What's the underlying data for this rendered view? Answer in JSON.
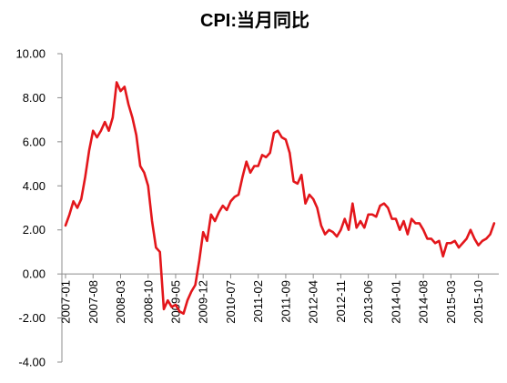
{
  "chart_data": {
    "type": "line",
    "title": "CPI:当月同比",
    "xlabel": "",
    "ylabel": "",
    "ylim": [
      -4,
      10
    ],
    "yticks": [
      "10.00",
      "8.00",
      "6.00",
      "4.00",
      "2.00",
      "0.00",
      "-2.00",
      "-4.00"
    ],
    "xtick_labels": [
      "2007-01",
      "2007-08",
      "2008-03",
      "2008-10",
      "2009-05",
      "2009-12",
      "2010-07",
      "2011-02",
      "2011-09",
      "2012-04",
      "2012-11",
      "2013-06",
      "2014-01",
      "2014-08",
      "2015-03",
      "2015-10"
    ],
    "x": [
      "2007-01",
      "2007-02",
      "2007-03",
      "2007-04",
      "2007-05",
      "2007-06",
      "2007-07",
      "2007-08",
      "2007-09",
      "2007-10",
      "2007-11",
      "2007-12",
      "2008-01",
      "2008-02",
      "2008-03",
      "2008-04",
      "2008-05",
      "2008-06",
      "2008-07",
      "2008-08",
      "2008-09",
      "2008-10",
      "2008-11",
      "2008-12",
      "2009-01",
      "2009-02",
      "2009-03",
      "2009-04",
      "2009-05",
      "2009-06",
      "2009-07",
      "2009-08",
      "2009-09",
      "2009-10",
      "2009-11",
      "2009-12",
      "2010-01",
      "2010-02",
      "2010-03",
      "2010-04",
      "2010-05",
      "2010-06",
      "2010-07",
      "2010-08",
      "2010-09",
      "2010-10",
      "2010-11",
      "2010-12",
      "2011-01",
      "2011-02",
      "2011-03",
      "2011-04",
      "2011-05",
      "2011-06",
      "2011-07",
      "2011-08",
      "2011-09",
      "2011-10",
      "2011-11",
      "2011-12",
      "2012-01",
      "2012-02",
      "2012-03",
      "2012-04",
      "2012-05",
      "2012-06",
      "2012-07",
      "2012-08",
      "2012-09",
      "2012-10",
      "2012-11",
      "2012-12",
      "2013-01",
      "2013-02",
      "2013-03",
      "2013-04",
      "2013-05",
      "2013-06",
      "2013-07",
      "2013-08",
      "2013-09",
      "2013-10",
      "2013-11",
      "2013-12",
      "2014-01",
      "2014-02",
      "2014-03",
      "2014-04",
      "2014-05",
      "2014-06",
      "2014-07",
      "2014-08",
      "2014-09",
      "2014-10",
      "2014-11",
      "2014-12",
      "2015-01",
      "2015-02",
      "2015-03",
      "2015-04",
      "2015-05",
      "2015-06",
      "2015-07",
      "2015-08",
      "2015-09",
      "2015-10",
      "2015-11",
      "2015-12",
      "2016-01",
      "2016-02"
    ],
    "series": [
      {
        "color": "#E3161B",
        "values": [
          2.2,
          2.7,
          3.3,
          3.0,
          3.4,
          4.4,
          5.6,
          6.5,
          6.2,
          6.5,
          6.9,
          6.5,
          7.1,
          8.7,
          8.3,
          8.5,
          7.7,
          7.1,
          6.3,
          4.9,
          4.6,
          4.0,
          2.4,
          1.2,
          1.0,
          -1.6,
          -1.2,
          -1.5,
          -1.4,
          -1.7,
          -1.8,
          -1.2,
          -0.8,
          -0.5,
          0.6,
          1.9,
          1.5,
          2.7,
          2.4,
          2.8,
          3.1,
          2.9,
          3.3,
          3.5,
          3.6,
          4.4,
          5.1,
          4.6,
          4.9,
          4.9,
          5.4,
          5.3,
          5.5,
          6.4,
          6.5,
          6.2,
          6.1,
          5.5,
          4.2,
          4.1,
          4.5,
          3.2,
          3.6,
          3.4,
          3.0,
          2.2,
          1.8,
          2.0,
          1.9,
          1.7,
          2.0,
          2.5,
          2.0,
          3.2,
          2.1,
          2.4,
          2.1,
          2.7,
          2.7,
          2.6,
          3.1,
          3.2,
          3.0,
          2.5,
          2.5,
          2.0,
          2.4,
          1.8,
          2.5,
          2.3,
          2.3,
          2.0,
          1.6,
          1.6,
          1.4,
          1.5,
          0.8,
          1.4,
          1.4,
          1.5,
          1.2,
          1.4,
          1.6,
          2.0,
          1.6,
          1.3,
          1.5,
          1.6,
          1.8,
          2.3
        ]
      }
    ],
    "axis_color": "#8C8C8C",
    "grid": false,
    "legend": "none"
  }
}
